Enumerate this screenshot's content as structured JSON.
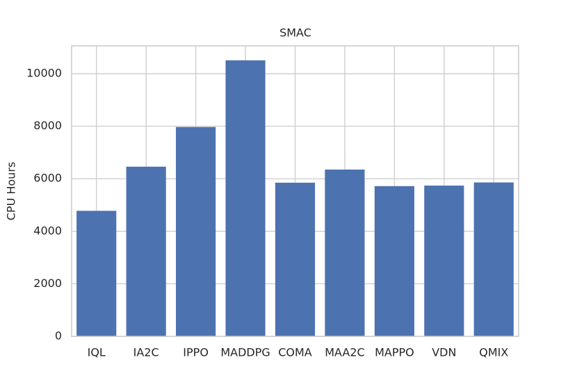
{
  "chart_data": {
    "type": "bar",
    "title": "SMAC",
    "y_label": "CPU Hours",
    "categories": [
      "IQL",
      "IA2C",
      "IPPO",
      "MADDPG",
      "COMA",
      "MAA2C",
      "MAPPO",
      "VDN",
      "QMIX"
    ],
    "values": [
      4780,
      6460,
      7970,
      10510,
      5850,
      6350,
      5720,
      5740,
      5860
    ],
    "color": "#4c72b0",
    "ylim": [
      0,
      11060
    ],
    "yticks": [
      0,
      2000,
      4000,
      6000,
      8000,
      10000
    ],
    "grid": true
  }
}
